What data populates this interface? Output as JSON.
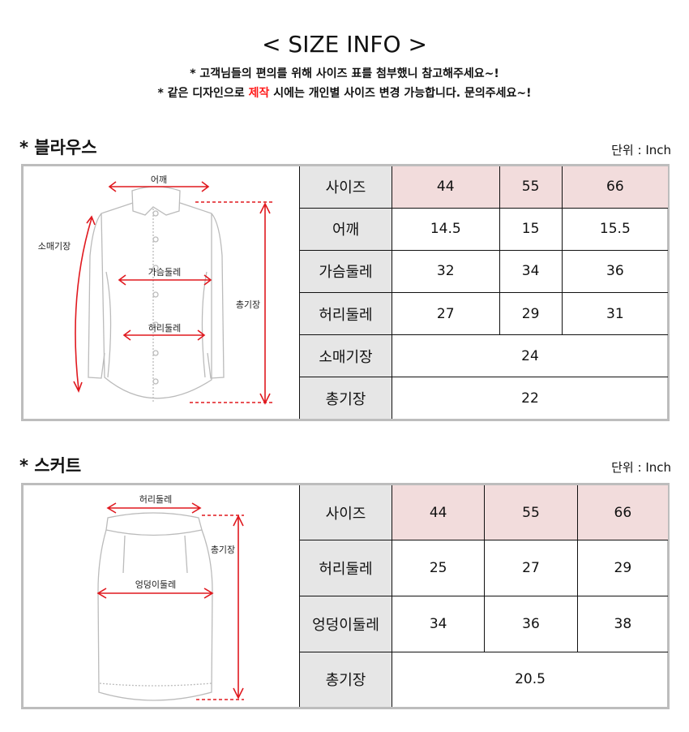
{
  "header": {
    "title": "< SIZE INFO >",
    "note1": "* 고객님들의 편의를 위해 사이즈 표를 첨부했니 참고해주세요~!",
    "note2_pre": "* 같은 디자인으로 ",
    "note2_highlight": "제작",
    "note2_post": " 시에는 개인별 사이즈 변경 가능합니다. 문의주세요~!",
    "highlight_color": "#ff1a1a"
  },
  "blouse": {
    "title": "* 블라우스",
    "unit": "단위 : Inch",
    "diagram_labels": {
      "shoulder": "어깨",
      "sleeve": "소매기장",
      "chest": "가슴둘레",
      "waist": "허리둘레",
      "length": "총기장"
    },
    "rows": [
      {
        "label": "사이즈",
        "values": [
          "44",
          "55",
          "66"
        ]
      },
      {
        "label": "어깨",
        "values": [
          "14.5",
          "15",
          "15.5"
        ]
      },
      {
        "label": "가슴둘레",
        "values": [
          "32",
          "34",
          "36"
        ]
      },
      {
        "label": "허리둘레",
        "values": [
          "27",
          "29",
          "31"
        ]
      },
      {
        "label": "소매기장",
        "value": "24"
      },
      {
        "label": "총기장",
        "value": "22"
      }
    ]
  },
  "skirt": {
    "title": "* 스커트",
    "unit": "단위 : Inch",
    "diagram_labels": {
      "waist": "허리둘레",
      "hip": "엉덩이둘레",
      "length": "총기장"
    },
    "rows": [
      {
        "label": "사이즈",
        "values": [
          "44",
          "55",
          "66"
        ]
      },
      {
        "label": "허리둘레",
        "values": [
          "25",
          "27",
          "29"
        ]
      },
      {
        "label": "엉덩이둘레",
        "values": [
          "34",
          "36",
          "38"
        ]
      },
      {
        "label": "총기장",
        "value": "20.5"
      }
    ]
  }
}
